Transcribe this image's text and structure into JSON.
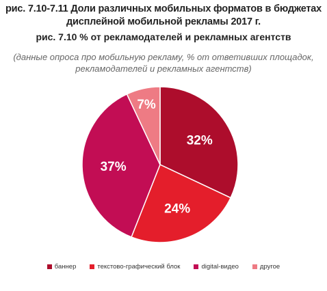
{
  "chart_data": {
    "type": "pie",
    "title": "рис. 7.10-7.11 Доли различных мобильных форматов в бюджетах дисплейной мобильной рекламы 2017 г.",
    "subtitle": "рис. 7.10 % от рекламодателей и рекламных агентств",
    "note": "(данные опроса про мобильную рекламу, % от ответивших площадок, рекламодателей и рекламных агентств)",
    "legend_position": "bottom",
    "slices": [
      {
        "name": "баннер",
        "value": 32,
        "label": "32%",
        "color": "#ad0d2c"
      },
      {
        "name": "текстово-графический блок",
        "value": 24,
        "label": "24%",
        "color": "#e41e2b"
      },
      {
        "name": "digital-видео",
        "value": 37,
        "label": "37%",
        "color": "#c20d54"
      },
      {
        "name": "другое",
        "value": 7,
        "label": "7%",
        "color": "#ee7b84"
      }
    ]
  }
}
